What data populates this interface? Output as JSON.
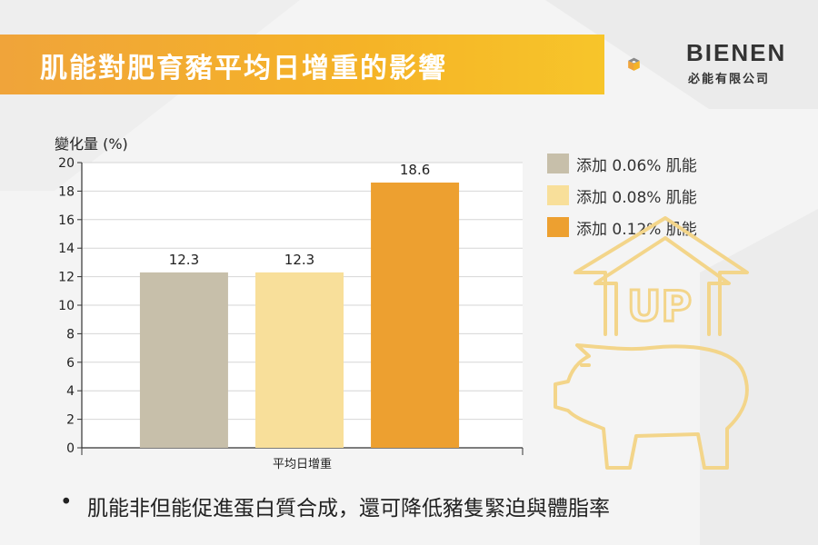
{
  "title": "肌能對肥育豬平均日增重的影響",
  "logo": {
    "name": "BIENEN",
    "subtitle": "必能有限公司"
  },
  "colors": {
    "accent": "#f5b327",
    "bar1": "#c7bfaa",
    "bar2": "#f8df9a",
    "bar3": "#eda030"
  },
  "chart_data": {
    "type": "bar",
    "ylabel": "變化量 (%)",
    "xlabel": "平均日增重",
    "ylim": [
      0,
      20
    ],
    "yticks": [
      0,
      2,
      4,
      6,
      8,
      10,
      12,
      14,
      16,
      18,
      20
    ],
    "categories": [
      "平均日增重"
    ],
    "series": [
      {
        "name": "添加 0.06% 肌能",
        "values": [
          12.3
        ],
        "color": "#c7bfaa"
      },
      {
        "name": "添加 0.08% 肌能",
        "values": [
          12.3
        ],
        "color": "#f8df9a"
      },
      {
        "name": "添加 0.12% 肌能",
        "values": [
          18.6
        ],
        "color": "#eda030"
      }
    ],
    "data_labels": [
      "12.3",
      "12.3",
      "18.6"
    ],
    "grid": true,
    "legend_position": "right"
  },
  "decoration": {
    "arrow_text": "UP",
    "icon": "pig-up-arrow-icon"
  },
  "bullet": {
    "dot": "•",
    "text": "肌能非但能促進蛋白質合成，還可降低豬隻緊迫與體脂率"
  }
}
